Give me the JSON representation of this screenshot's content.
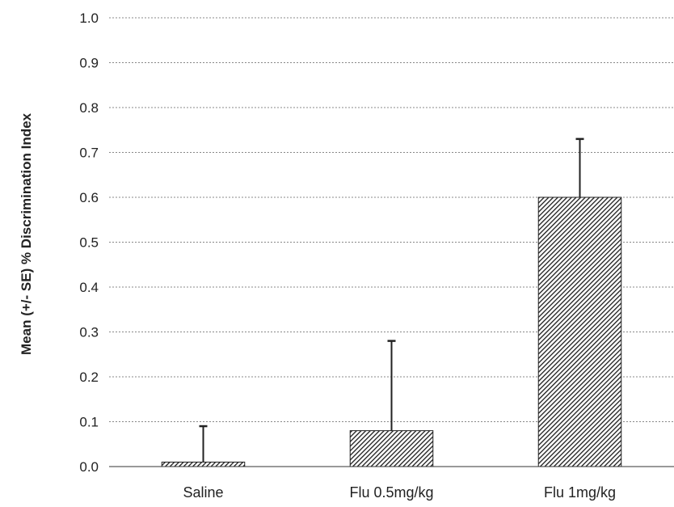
{
  "chart_data": {
    "type": "bar",
    "title": "",
    "xlabel": "",
    "ylabel": "Mean (+/- SE) % Discrimination Index",
    "categories": [
      "Saline",
      "Flu 0.5mg/kg",
      "Flu 1mg/kg"
    ],
    "values": [
      0.01,
      0.08,
      0.6
    ],
    "error_upper": [
      0.09,
      0.28,
      0.73
    ],
    "ylim": [
      0.0,
      1.0
    ],
    "yticks": [
      "0.0",
      "0.1",
      "0.2",
      "0.3",
      "0.4",
      "0.5",
      "0.6",
      "0.7",
      "0.8",
      "0.9",
      "1.0"
    ],
    "grid": true,
    "legend": "none",
    "bar_pattern": "diagonal-hatch",
    "colors": {
      "bar": "#222222",
      "grid": "#888888",
      "axis": "#333333"
    }
  }
}
